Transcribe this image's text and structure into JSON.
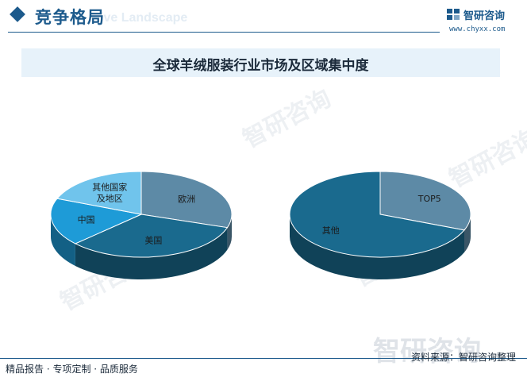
{
  "header": {
    "title": "竞争格局",
    "subtitle": "ive Landscape",
    "brand": "智研咨询",
    "url": "www.chyxx.com"
  },
  "watermark": "智研咨询",
  "chart_data": {
    "title": "全球羊绒服装行业市场及区域集中度",
    "type": "pie",
    "charts": [
      {
        "slices": [
          {
            "label": "欧洲",
            "value": 30,
            "color": "#5d8aa6"
          },
          {
            "label": "美国",
            "value": 33,
            "color": "#1a6a8e"
          },
          {
            "label": "中国",
            "value": 18,
            "color": "#1e9bd7"
          },
          {
            "label": "其他国家\n及地区",
            "value": 19,
            "color": "#70c4ec"
          }
        ]
      },
      {
        "slices": [
          {
            "label": "TOP5",
            "value": 31,
            "color": "#5d8aa6"
          },
          {
            "label": "其他",
            "value": 69,
            "color": "#1a6a8e"
          }
        ]
      }
    ]
  },
  "footer": {
    "left": "精品报告 · 专项定制 · 品质服务",
    "source": "资料来源：智研咨询整理"
  }
}
